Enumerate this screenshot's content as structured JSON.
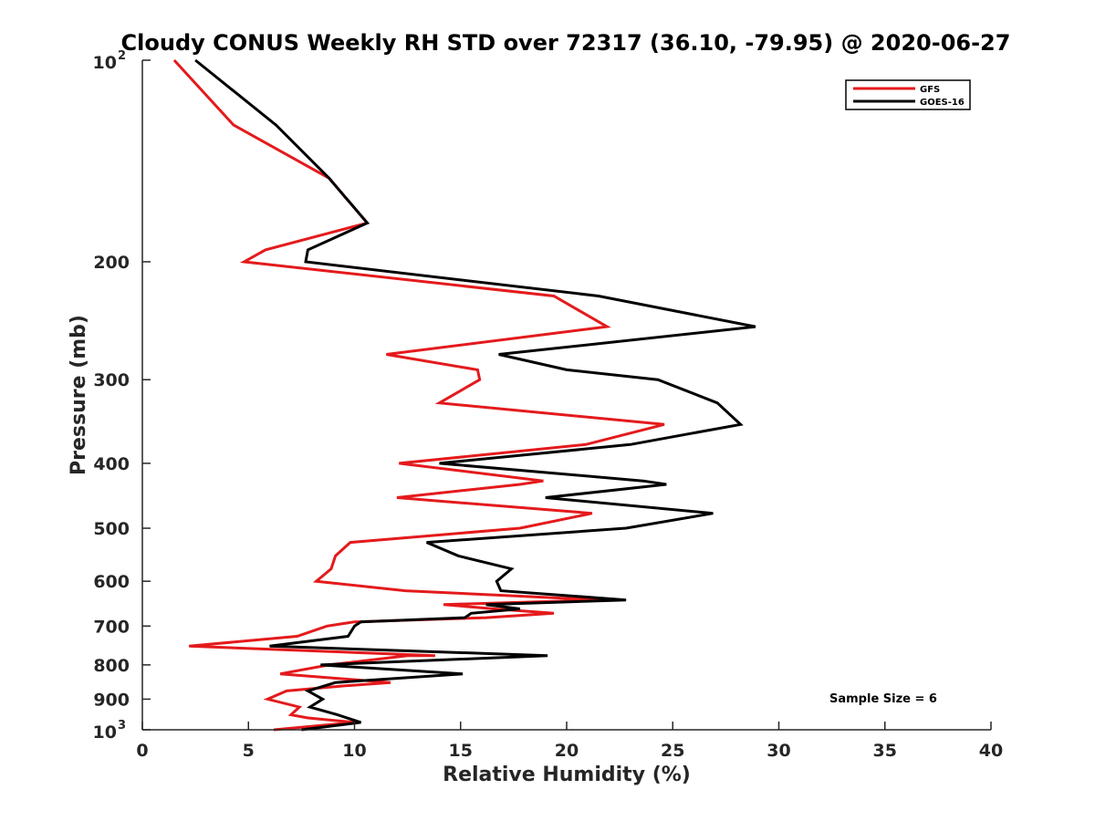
{
  "chart_data": {
    "type": "line",
    "title": "Cloudy CONUS Weekly RH STD over 72317 (36.10, -79.95) @ 2020-06-27",
    "xlabel": "Relative Humidity (%)",
    "ylabel": "Pressure (mb)",
    "xlim": [
      0,
      40
    ],
    "ylim": [
      100,
      1000
    ],
    "yscale": "log",
    "y_reversed": true,
    "x_ticks": [
      0,
      5,
      10,
      15,
      20,
      25,
      30,
      35,
      40
    ],
    "x_tick_labels": [
      "0",
      "5",
      "10",
      "15",
      "20",
      "25",
      "30",
      "35",
      "40"
    ],
    "y_ticks": [
      {
        "value": 100,
        "base": "10",
        "exp": "2"
      },
      {
        "value": 200,
        "label": "200"
      },
      {
        "value": 300,
        "label": "300"
      },
      {
        "value": 400,
        "label": "400"
      },
      {
        "value": 500,
        "label": "500"
      },
      {
        "value": 600,
        "label": "600"
      },
      {
        "value": 700,
        "label": "700"
      },
      {
        "value": 800,
        "label": "800"
      },
      {
        "value": 900,
        "label": "900"
      },
      {
        "value": 1000,
        "base": "10",
        "exp": "3"
      }
    ],
    "grid": false,
    "legend_position": "top-right",
    "annotation": "Sample Size = 6",
    "series": [
      {
        "name": "GFS",
        "color": "#e41a1c",
        "points": [
          [
            1.5,
            100
          ],
          [
            4.3,
            125
          ],
          [
            8.8,
            150
          ],
          [
            10.6,
            175
          ],
          [
            5.8,
            192
          ],
          [
            4.8,
            200
          ],
          [
            19.4,
            225
          ],
          [
            21.9,
            250
          ],
          [
            11.5,
            275
          ],
          [
            15.8,
            290
          ],
          [
            15.9,
            300
          ],
          [
            14.0,
            325
          ],
          [
            24.6,
            350
          ],
          [
            20.9,
            375
          ],
          [
            12.1,
            400
          ],
          [
            18.9,
            425
          ],
          [
            17.8,
            430
          ],
          [
            12.0,
            450
          ],
          [
            21.2,
            475
          ],
          [
            17.8,
            500
          ],
          [
            9.8,
            525
          ],
          [
            9.1,
            550
          ],
          [
            8.9,
            575
          ],
          [
            8.2,
            600
          ],
          [
            12.4,
            620
          ],
          [
            21.6,
            640
          ],
          [
            14.2,
            650
          ],
          [
            16.6,
            660
          ],
          [
            19.4,
            670
          ],
          [
            16.2,
            680
          ],
          [
            10.0,
            690
          ],
          [
            8.7,
            700
          ],
          [
            7.3,
            725
          ],
          [
            2.2,
            750
          ],
          [
            13.8,
            775
          ],
          [
            12.5,
            775
          ],
          [
            8.8,
            800
          ],
          [
            6.5,
            825
          ],
          [
            11.7,
            850
          ],
          [
            9.5,
            860
          ],
          [
            6.8,
            875
          ],
          [
            5.9,
            900
          ],
          [
            7.4,
            925
          ],
          [
            7.0,
            950
          ],
          [
            7.8,
            960
          ],
          [
            10.0,
            975
          ],
          [
            6.2,
            1000
          ]
        ]
      },
      {
        "name": "GOES-16",
        "color": "#000000",
        "points": [
          [
            2.5,
            100
          ],
          [
            6.3,
            125
          ],
          [
            8.8,
            150
          ],
          [
            10.6,
            175
          ],
          [
            7.8,
            192
          ],
          [
            7.7,
            200
          ],
          [
            21.5,
            225
          ],
          [
            28.9,
            250
          ],
          [
            16.8,
            275
          ],
          [
            20.0,
            290
          ],
          [
            24.3,
            300
          ],
          [
            27.1,
            325
          ],
          [
            28.2,
            350
          ],
          [
            23.0,
            375
          ],
          [
            14.0,
            400
          ],
          [
            23.6,
            425
          ],
          [
            24.7,
            430
          ],
          [
            19.0,
            450
          ],
          [
            26.9,
            475
          ],
          [
            22.8,
            500
          ],
          [
            13.4,
            525
          ],
          [
            14.9,
            550
          ],
          [
            17.4,
            575
          ],
          [
            16.7,
            600
          ],
          [
            16.9,
            620
          ],
          [
            22.8,
            640
          ],
          [
            16.2,
            650
          ],
          [
            17.8,
            660
          ],
          [
            15.5,
            670
          ],
          [
            15.2,
            680
          ],
          [
            10.3,
            690
          ],
          [
            10.0,
            700
          ],
          [
            9.7,
            725
          ],
          [
            6.0,
            750
          ],
          [
            19.1,
            775
          ],
          [
            8.4,
            800
          ],
          [
            15.1,
            825
          ],
          [
            9.1,
            850
          ],
          [
            7.8,
            875
          ],
          [
            8.5,
            900
          ],
          [
            7.9,
            925
          ],
          [
            9.2,
            950
          ],
          [
            10.3,
            975
          ],
          [
            7.5,
            1000
          ]
        ]
      }
    ]
  }
}
